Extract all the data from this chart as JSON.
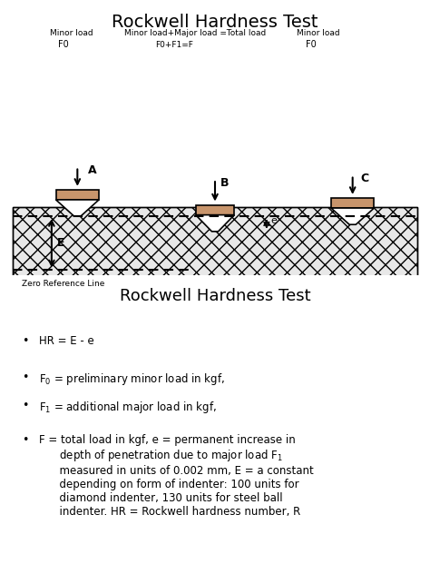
{
  "title1": "Rockwell Hardness Test",
  "title2": "Rockwell Hardness Test",
  "bg_color": "#ffffff",
  "diagram_bg": "#f0f0f0",
  "indenter_fill": "#ffffff",
  "indenter_top_fill": "#c8956c",
  "material_fill": "#e8e8e8",
  "label_A": "A",
  "label_B": "B",
  "label_C": "C",
  "label_E": "E",
  "label_e": "e",
  "minor_load_text1": "Minor load\nF0",
  "minor_load_text2": "Minor load\nF0",
  "total_load_text": "Minor load+Major load =Total load\nF0+F1=F",
  "zero_ref_text": "Zero Reference Line",
  "bullet_lines": [
    "HR = E - e",
    "F₀ = preliminary minor load in kgf,",
    "F₁ = additional major load in kgf,",
    "F = total load in kgf, e = permanent increase in\n    depth of penetration due to major load F₁\n    measured in units of 0.002 mm, E = a constant\n    depending on form of indenter: 100 units for\n    diamond indenter, 130 units for steel ball\n    indenter. HR = Rockwell hardness number, R"
  ]
}
